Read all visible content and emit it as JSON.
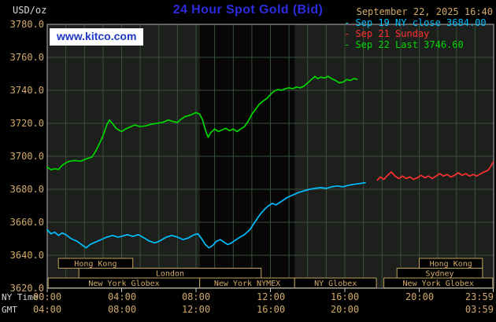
{
  "header": {
    "unit": "USD/oz",
    "title": "24 Hour Spot Gold (Bid)",
    "datetime": "September 22, 2025 16:40",
    "watermark": "www.kitco.com"
  },
  "legend": [
    {
      "label": "Sep 19 NY close 3684.00",
      "color": "#00c0ff"
    },
    {
      "label": "Sep 21 Sunday",
      "color": "#ff3030"
    },
    {
      "label": "Sep 22 Last 3746.60",
      "color": "#00d800"
    }
  ],
  "axes": {
    "ny_time_label": "NY Time",
    "gmt_label": "GMT",
    "y_ticks": [
      3780,
      3760,
      3740,
      3720,
      3700,
      3680,
      3660,
      3640,
      3620
    ],
    "x_ticks_ny": [
      {
        "hour": 0,
        "label": "00:00"
      },
      {
        "hour": 4,
        "label": "04:00"
      },
      {
        "hour": 8,
        "label": "08:00"
      },
      {
        "hour": 12,
        "label": "12:00"
      },
      {
        "hour": 16,
        "label": "16:00"
      },
      {
        "hour": 20,
        "label": "20:00"
      },
      {
        "hour": 23.98,
        "label": "23:59"
      }
    ],
    "x_ticks_gmt": [
      {
        "hour": 0,
        "label": "04:00"
      },
      {
        "hour": 4,
        "label": "08:00"
      },
      {
        "hour": 8,
        "label": "12:00"
      },
      {
        "hour": 12,
        "label": "16:00"
      },
      {
        "hour": 16,
        "label": "20:00"
      },
      {
        "hour": 23.98,
        "label": "03:59"
      }
    ]
  },
  "sessions": [
    {
      "label": "Hong Kong",
      "row": 0,
      "start": 0.6,
      "end": 4.6
    },
    {
      "label": "Hong Kong",
      "row": 0,
      "start": 20.0,
      "end": 23.4
    },
    {
      "label": "London",
      "row": 1,
      "start": 1.7,
      "end": 11.5
    },
    {
      "label": "Sydney",
      "row": 1,
      "start": 18.8,
      "end": 23.4
    },
    {
      "label": "New York Globex",
      "row": 2,
      "start": 0.05,
      "end": 8.2
    },
    {
      "label": "New York NYMEX",
      "row": 2,
      "start": 8.2,
      "end": 13.3
    },
    {
      "label": "NY Globex",
      "row": 2,
      "start": 13.3,
      "end": 17.7
    },
    {
      "label": "New York Globex",
      "row": 2,
      "start": 18.1,
      "end": 23.95
    }
  ],
  "chart_data": {
    "type": "line",
    "title": "24 Hour Spot Gold (Bid)",
    "xlabel": "NY Time (hours)",
    "ylabel": "USD/oz",
    "ylim": [
      3620,
      3780
    ],
    "xlim_hours": [
      0,
      24
    ],
    "grid": true,
    "legend_position": "top-right",
    "nymex_shade_hours": [
      8.2,
      13.3
    ],
    "series": [
      {
        "id": "series-sep19-ny-close",
        "name": "Sep 19 NY close 3684.00",
        "color": "#00c0ff",
        "points": [
          [
            0.0,
            3655.5
          ],
          [
            0.2,
            3653.0
          ],
          [
            0.4,
            3654.0
          ],
          [
            0.6,
            3652.0
          ],
          [
            0.8,
            3653.5
          ],
          [
            1.0,
            3652.5
          ],
          [
            1.3,
            3650.0
          ],
          [
            1.6,
            3648.5
          ],
          [
            1.9,
            3646.0
          ],
          [
            2.1,
            3644.5
          ],
          [
            2.3,
            3646.5
          ],
          [
            2.6,
            3648.0
          ],
          [
            2.9,
            3649.5
          ],
          [
            3.2,
            3651.0
          ],
          [
            3.5,
            3652.0
          ],
          [
            3.8,
            3651.0
          ],
          [
            4.0,
            3651.5
          ],
          [
            4.3,
            3652.5
          ],
          [
            4.6,
            3651.5
          ],
          [
            4.9,
            3652.5
          ],
          [
            5.2,
            3650.5
          ],
          [
            5.5,
            3648.5
          ],
          [
            5.8,
            3647.5
          ],
          [
            6.1,
            3649.0
          ],
          [
            6.4,
            3651.0
          ],
          [
            6.7,
            3652.0
          ],
          [
            7.0,
            3651.0
          ],
          [
            7.3,
            3649.5
          ],
          [
            7.6,
            3650.5
          ],
          [
            7.9,
            3652.5
          ],
          [
            8.1,
            3653.0
          ],
          [
            8.3,
            3650.0
          ],
          [
            8.5,
            3646.5
          ],
          [
            8.7,
            3644.5
          ],
          [
            8.9,
            3646.0
          ],
          [
            9.1,
            3648.5
          ],
          [
            9.3,
            3649.5
          ],
          [
            9.5,
            3648.0
          ],
          [
            9.7,
            3646.5
          ],
          [
            9.9,
            3647.5
          ],
          [
            10.1,
            3649.0
          ],
          [
            10.3,
            3650.5
          ],
          [
            10.6,
            3652.5
          ],
          [
            10.9,
            3655.5
          ],
          [
            11.1,
            3659.0
          ],
          [
            11.3,
            3662.5
          ],
          [
            11.5,
            3665.5
          ],
          [
            11.7,
            3668.0
          ],
          [
            11.9,
            3670.0
          ],
          [
            12.1,
            3671.5
          ],
          [
            12.3,
            3670.5
          ],
          [
            12.5,
            3672.0
          ],
          [
            12.7,
            3673.5
          ],
          [
            12.9,
            3675.0
          ],
          [
            13.1,
            3676.0
          ],
          [
            13.3,
            3677.0
          ],
          [
            13.5,
            3678.0
          ],
          [
            13.8,
            3679.0
          ],
          [
            14.1,
            3680.0
          ],
          [
            14.4,
            3680.5
          ],
          [
            14.7,
            3681.0
          ],
          [
            15.0,
            3680.5
          ],
          [
            15.3,
            3681.5
          ],
          [
            15.6,
            3682.0
          ],
          [
            15.9,
            3681.5
          ],
          [
            16.2,
            3682.5
          ],
          [
            16.5,
            3683.0
          ],
          [
            16.8,
            3683.5
          ],
          [
            17.1,
            3684.0
          ]
        ]
      },
      {
        "id": "series-sep21-sunday",
        "name": "Sep 21 Sunday",
        "color": "#ff3030",
        "points": [
          [
            17.75,
            3685.5
          ],
          [
            17.9,
            3687.5
          ],
          [
            18.1,
            3686.0
          ],
          [
            18.3,
            3688.5
          ],
          [
            18.5,
            3690.5
          ],
          [
            18.7,
            3688.0
          ],
          [
            18.9,
            3686.5
          ],
          [
            19.1,
            3688.0
          ],
          [
            19.3,
            3686.5
          ],
          [
            19.5,
            3687.5
          ],
          [
            19.7,
            3686.0
          ],
          [
            19.9,
            3687.0
          ],
          [
            20.1,
            3688.5
          ],
          [
            20.3,
            3687.0
          ],
          [
            20.5,
            3688.0
          ],
          [
            20.7,
            3686.5
          ],
          [
            20.9,
            3688.0
          ],
          [
            21.1,
            3689.5
          ],
          [
            21.3,
            3688.0
          ],
          [
            21.5,
            3689.0
          ],
          [
            21.7,
            3687.5
          ],
          [
            21.9,
            3688.5
          ],
          [
            22.1,
            3690.0
          ],
          [
            22.3,
            3688.5
          ],
          [
            22.5,
            3689.5
          ],
          [
            22.7,
            3688.0
          ],
          [
            22.9,
            3689.0
          ],
          [
            23.1,
            3688.0
          ],
          [
            23.3,
            3689.5
          ],
          [
            23.5,
            3690.5
          ],
          [
            23.7,
            3691.5
          ],
          [
            23.85,
            3694.0
          ],
          [
            23.98,
            3696.5
          ]
        ]
      },
      {
        "id": "series-sep22-last",
        "name": "Sep 22 Last 3746.60",
        "color": "#00d800",
        "points": [
          [
            0.0,
            3693.5
          ],
          [
            0.2,
            3691.8
          ],
          [
            0.4,
            3692.5
          ],
          [
            0.6,
            3692.0
          ],
          [
            0.8,
            3694.5
          ],
          [
            1.0,
            3696.0
          ],
          [
            1.2,
            3697.0
          ],
          [
            1.5,
            3697.5
          ],
          [
            1.8,
            3697.0
          ],
          [
            2.1,
            3698.5
          ],
          [
            2.4,
            3699.5
          ],
          [
            2.6,
            3703.0
          ],
          [
            2.8,
            3707.5
          ],
          [
            3.0,
            3712.5
          ],
          [
            3.2,
            3719.0
          ],
          [
            3.35,
            3722.0
          ],
          [
            3.5,
            3720.0
          ],
          [
            3.7,
            3717.0
          ],
          [
            3.9,
            3715.5
          ],
          [
            4.0,
            3715.0
          ],
          [
            4.2,
            3716.5
          ],
          [
            4.4,
            3717.5
          ],
          [
            4.7,
            3719.0
          ],
          [
            5.0,
            3718.0
          ],
          [
            5.3,
            3718.5
          ],
          [
            5.6,
            3719.5
          ],
          [
            5.9,
            3720.0
          ],
          [
            6.2,
            3720.5
          ],
          [
            6.5,
            3722.0
          ],
          [
            6.8,
            3721.0
          ],
          [
            7.0,
            3720.5
          ],
          [
            7.2,
            3722.5
          ],
          [
            7.4,
            3724.0
          ],
          [
            7.7,
            3725.0
          ],
          [
            8.0,
            3726.5
          ],
          [
            8.2,
            3725.5
          ],
          [
            8.35,
            3722.0
          ],
          [
            8.5,
            3716.0
          ],
          [
            8.65,
            3711.5
          ],
          [
            8.8,
            3714.5
          ],
          [
            9.0,
            3716.5
          ],
          [
            9.2,
            3715.0
          ],
          [
            9.4,
            3716.0
          ],
          [
            9.6,
            3717.0
          ],
          [
            9.8,
            3715.5
          ],
          [
            10.0,
            3716.5
          ],
          [
            10.2,
            3715.0
          ],
          [
            10.4,
            3716.5
          ],
          [
            10.6,
            3718.0
          ],
          [
            10.8,
            3721.0
          ],
          [
            11.0,
            3725.5
          ],
          [
            11.2,
            3728.5
          ],
          [
            11.4,
            3731.5
          ],
          [
            11.6,
            3733.5
          ],
          [
            11.8,
            3735.0
          ],
          [
            12.0,
            3737.5
          ],
          [
            12.2,
            3739.5
          ],
          [
            12.4,
            3740.5
          ],
          [
            12.6,
            3740.0
          ],
          [
            12.8,
            3741.0
          ],
          [
            13.0,
            3741.5
          ],
          [
            13.2,
            3741.0
          ],
          [
            13.4,
            3742.0
          ],
          [
            13.6,
            3741.5
          ],
          [
            13.8,
            3742.5
          ],
          [
            14.0,
            3744.5
          ],
          [
            14.2,
            3746.5
          ],
          [
            14.4,
            3748.5
          ],
          [
            14.55,
            3747.0
          ],
          [
            14.7,
            3748.0
          ],
          [
            14.9,
            3747.5
          ],
          [
            15.1,
            3748.5
          ],
          [
            15.3,
            3747.0
          ],
          [
            15.5,
            3746.0
          ],
          [
            15.7,
            3744.5
          ],
          [
            15.9,
            3745.0
          ],
          [
            16.1,
            3746.5
          ],
          [
            16.3,
            3746.0
          ],
          [
            16.5,
            3747.2
          ],
          [
            16.65,
            3746.6
          ]
        ]
      }
    ]
  },
  "colors": {
    "background": "#000000",
    "plot_bg": "#1d1f1d",
    "band": "#070707",
    "grid": "#395139",
    "frame": "#9a9a9a",
    "tick": "#cccccc",
    "tan": "#d2a96a",
    "session_border": "#c2a35a",
    "title_blue": "#2c2ce0",
    "watermark_blue": "#2038c8",
    "cyan": "#00c0ff",
    "red": "#ff3030",
    "green": "#00d800"
  }
}
